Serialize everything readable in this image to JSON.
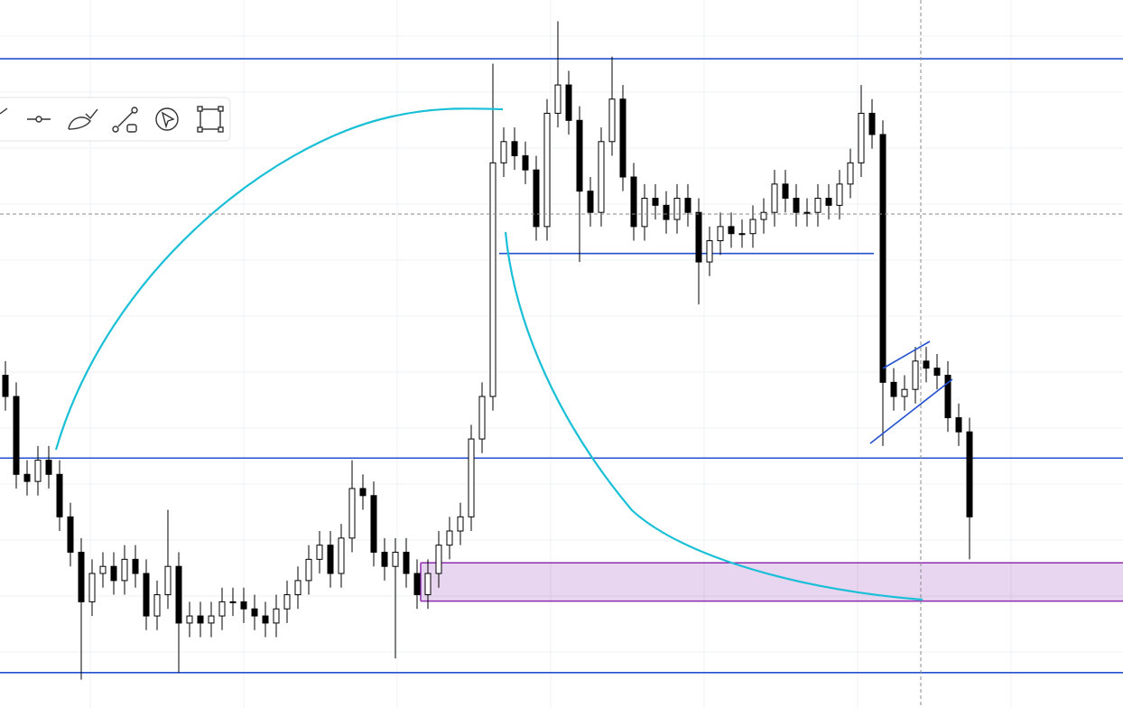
{
  "chart_data": {
    "type": "candlestick",
    "ylim": [
      0,
      100
    ],
    "open": [
      47,
      44,
      33,
      32,
      35,
      33,
      27,
      22,
      15,
      19,
      20,
      18,
      21,
      19,
      13,
      16,
      20,
      12,
      13,
      12,
      13,
      15,
      15,
      14,
      13,
      12,
      14,
      16,
      18,
      21,
      23,
      19,
      24,
      31,
      30,
      22,
      20,
      22,
      19,
      16,
      19,
      23,
      25,
      27,
      38,
      44,
      77,
      80,
      78,
      76,
      68,
      84,
      88,
      83,
      73,
      70,
      80,
      86,
      75,
      68,
      72,
      71,
      69,
      72,
      70,
      63,
      66,
      68,
      67,
      67,
      69,
      70,
      74,
      72,
      70,
      70,
      72,
      71,
      74,
      77,
      84,
      81,
      46,
      44,
      45,
      49,
      48,
      47,
      41,
      39
    ],
    "high": [
      49,
      46,
      35,
      37,
      37,
      35,
      29,
      24,
      21,
      22,
      22,
      23,
      23,
      21,
      18,
      28,
      22,
      15,
      15,
      15,
      17,
      17,
      17,
      16,
      15,
      16,
      18,
      20,
      23,
      25,
      25,
      26,
      35,
      33,
      32,
      24,
      24,
      24,
      21,
      21,
      25,
      27,
      29,
      40,
      46,
      91,
      82,
      82,
      80,
      78,
      86,
      97,
      90,
      85,
      75,
      82,
      92,
      88,
      77,
      74,
      74,
      73,
      74,
      74,
      72,
      68,
      70,
      70,
      69,
      71,
      72,
      76,
      76,
      74,
      72,
      74,
      74,
      76,
      79,
      88,
      86,
      83,
      48,
      47,
      51,
      51,
      50,
      49,
      43,
      41
    ],
    "low": [
      42,
      31,
      30,
      30,
      31,
      25,
      20,
      4,
      13,
      17,
      16,
      16,
      17,
      11,
      11,
      14,
      5,
      10,
      10,
      10,
      11,
      13,
      12,
      11,
      10,
      10,
      12,
      14,
      16,
      19,
      17,
      17,
      22,
      28,
      20,
      18,
      7,
      17,
      14,
      14,
      17,
      21,
      23,
      25,
      36,
      42,
      75,
      76,
      74,
      66,
      66,
      82,
      81,
      63,
      68,
      68,
      78,
      73,
      66,
      66,
      69,
      67,
      67,
      68,
      57,
      61,
      64,
      65,
      65,
      65,
      67,
      68,
      70,
      68,
      68,
      68,
      69,
      69,
      72,
      75,
      79,
      37,
      42,
      42,
      43,
      46,
      45,
      39,
      37,
      21
    ],
    "close": [
      44,
      33,
      32,
      35,
      33,
      27,
      22,
      15,
      19,
      20,
      18,
      21,
      19,
      13,
      16,
      20,
      12,
      13,
      12,
      13,
      15,
      15,
      14,
      13,
      12,
      14,
      16,
      18,
      21,
      23,
      19,
      24,
      31,
      30,
      22,
      20,
      22,
      19,
      16,
      19,
      23,
      25,
      27,
      38,
      44,
      77,
      80,
      78,
      76,
      68,
      84,
      88,
      83,
      73,
      70,
      80,
      86,
      75,
      68,
      72,
      71,
      69,
      72,
      70,
      63,
      66,
      68,
      67,
      67,
      69,
      70,
      74,
      72,
      70,
      70,
      72,
      71,
      74,
      77,
      84,
      81,
      46,
      44,
      45,
      49,
      48,
      47,
      41,
      39,
      27
    ],
    "levels": [
      91.7,
      35.3,
      5.0
    ],
    "level_color": "#2250d0",
    "support_level": 64.2,
    "zone": [
      15.1,
      20.5
    ],
    "zone_color": "#8e2bb0",
    "grid": true
  }
}
